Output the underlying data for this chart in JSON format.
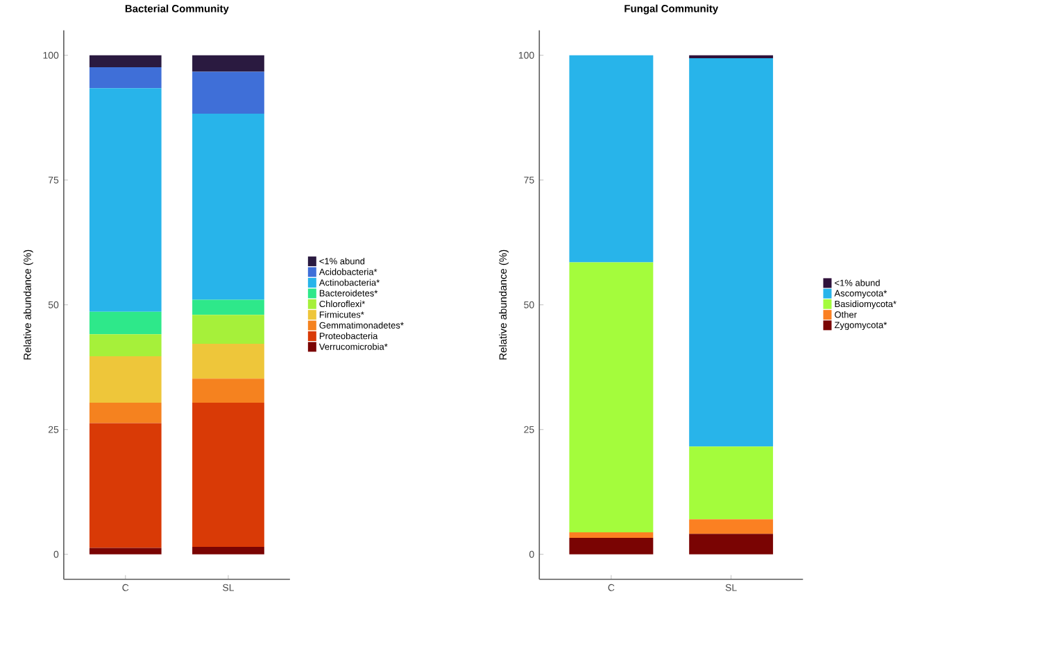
{
  "chart_data": [
    {
      "type": "bar",
      "title": "Bacterial Community",
      "ylabel": "Relative abundance (%)",
      "categories": [
        "C",
        "SL"
      ],
      "stacked": true,
      "legend": "right",
      "grid": false,
      "ylim": [
        -5,
        105
      ],
      "yticks": [
        0,
        25,
        50,
        75,
        100
      ],
      "series": [
        {
          "name": "Verrucomicrobia*",
          "color": "#7a0403",
          "values": [
            1.3,
            1.5
          ]
        },
        {
          "name": "Proteobacteria",
          "color": "#d93a06",
          "values": [
            25.0,
            28.9
          ]
        },
        {
          "name": "Gemmatimonadetes*",
          "color": "#f5821f",
          "values": [
            4.1,
            4.8
          ]
        },
        {
          "name": "Firmicutes*",
          "color": "#eec63a",
          "values": [
            9.3,
            7.0
          ]
        },
        {
          "name": "Chloroflexi*",
          "color": "#a6f03a",
          "values": [
            4.4,
            5.8
          ]
        },
        {
          "name": "Bacteroidetes*",
          "color": "#2ee88a",
          "values": [
            4.5,
            3.0
          ]
        },
        {
          "name": "Actinobacteria*",
          "color": "#28b4ea",
          "values": [
            44.8,
            37.3
          ]
        },
        {
          "name": "Acidobacteria*",
          "color": "#3f6fd8",
          "values": [
            4.2,
            8.4
          ]
        },
        {
          "name": "<1% abund",
          "color": "#2a1a40",
          "values": [
            2.4,
            3.3
          ]
        }
      ]
    },
    {
      "type": "bar",
      "title": "Fungal Community",
      "ylabel": "Relative abundance (%)",
      "categories": [
        "C",
        "SL"
      ],
      "stacked": true,
      "legend": "right",
      "grid": false,
      "ylim": [
        -5,
        105
      ],
      "yticks": [
        0,
        25,
        50,
        75,
        100
      ],
      "series": [
        {
          "name": "Zygomycota*",
          "color": "#7a0403",
          "values": [
            3.3,
            4.1
          ]
        },
        {
          "name": "Other",
          "color": "#fb8022",
          "values": [
            1.1,
            2.9
          ]
        },
        {
          "name": "Basidiomycota*",
          "color": "#a4fc3c",
          "values": [
            54.1,
            14.6
          ]
        },
        {
          "name": "Ascomycota*",
          "color": "#28b4ea",
          "values": [
            41.5,
            77.8
          ]
        },
        {
          "name": "<1% abund",
          "color": "#30123b",
          "values": [
            0,
            0.6
          ]
        }
      ]
    }
  ]
}
